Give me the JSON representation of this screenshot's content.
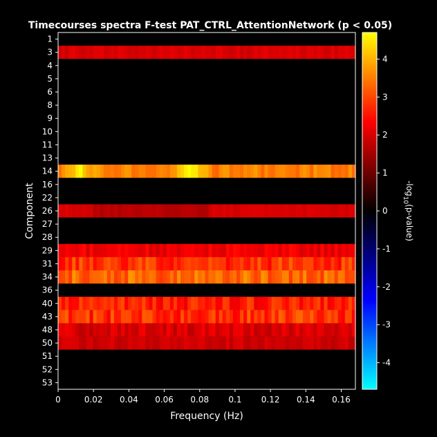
{
  "chart_data": {
    "type": "heatmap",
    "title": "Timecourses spectra F-test PAT_CTRL_AttentionNetwork (p < 0.05)",
    "xlabel": "Frequency (Hz)",
    "ylabel": "Component",
    "colorbar_label_main": "-log",
    "colorbar_label_sub": "10",
    "colorbar_label_tail": "(p-value)",
    "colormap": "diverging: cyan-blue-black-red-yellow",
    "colors": {
      "background": "#000000",
      "neg_max": "#00ffff",
      "neg_mid": "#0000ff",
      "zero": "#000000",
      "pos_mid": "#ff0000",
      "pos_max": "#ffff00"
    },
    "xlim": [
      0,
      0.168
    ],
    "x_ticks": [
      0,
      0.02,
      0.04,
      0.06,
      0.08,
      0.1,
      0.12,
      0.14,
      0.16
    ],
    "x_tick_labels": [
      "0",
      "0.02",
      "0.04",
      "0.06",
      "0.08",
      "0.1",
      "0.12",
      "0.14",
      "0.16"
    ],
    "colorbar_ticks": [
      4,
      3,
      2,
      1,
      0,
      -1,
      -2,
      -3,
      -4
    ],
    "colorbar_range": [
      -4.7,
      4.7
    ],
    "components": [
      "1",
      "3",
      "4",
      "5",
      "6",
      "8",
      "9",
      "10",
      "11",
      "13",
      "14",
      "16",
      "22",
      "26",
      "27",
      "28",
      "29",
      "31",
      "34",
      "36",
      "40",
      "43",
      "48",
      "50",
      "51",
      "52",
      "53"
    ],
    "num_freq_bins": 85,
    "row_profiles": [
      {
        "component": "1",
        "value": 0
      },
      {
        "component": "3",
        "value": 2.0,
        "variation": 0.15
      },
      {
        "component": "4",
        "value": 0
      },
      {
        "component": "5",
        "value": 0
      },
      {
        "component": "6",
        "value": 0
      },
      {
        "component": "8",
        "value": 0
      },
      {
        "component": "9",
        "value": 0
      },
      {
        "component": "10",
        "value": 0
      },
      {
        "component": "11",
        "value": 0
      },
      {
        "component": "13",
        "value": 0
      },
      {
        "component": "14",
        "value": 3.5,
        "peaks": [
          {
            "x": 0.012,
            "v": 4.6
          },
          {
            "x": 0.075,
            "v": 4.5
          }
        ],
        "variation": 0.3
      },
      {
        "component": "16",
        "value": 0
      },
      {
        "component": "22",
        "value": 0
      },
      {
        "component": "26",
        "value": 2.0,
        "dips": [
          {
            "from": 0.02,
            "to": 0.085,
            "v": 1.7
          }
        ],
        "variation": 0.1
      },
      {
        "component": "27",
        "value": 0
      },
      {
        "component": "28",
        "value": 0
      },
      {
        "component": "29",
        "value": 2.2,
        "variation": 0.25
      },
      {
        "component": "31",
        "value": 2.8,
        "variation": 0.5
      },
      {
        "component": "34",
        "value": 3.3,
        "variation": 0.45
      },
      {
        "component": "36",
        "value": 0
      },
      {
        "component": "40",
        "value": 2.6,
        "variation": 0.45
      },
      {
        "component": "43",
        "value": 2.8,
        "variation": 0.5
      },
      {
        "component": "48",
        "value": 2.0,
        "variation": 0.3
      },
      {
        "component": "50",
        "value": 1.9,
        "variation": 0.2
      },
      {
        "component": "51",
        "value": 0
      },
      {
        "component": "52",
        "value": 0
      },
      {
        "component": "53",
        "value": 0
      }
    ]
  }
}
